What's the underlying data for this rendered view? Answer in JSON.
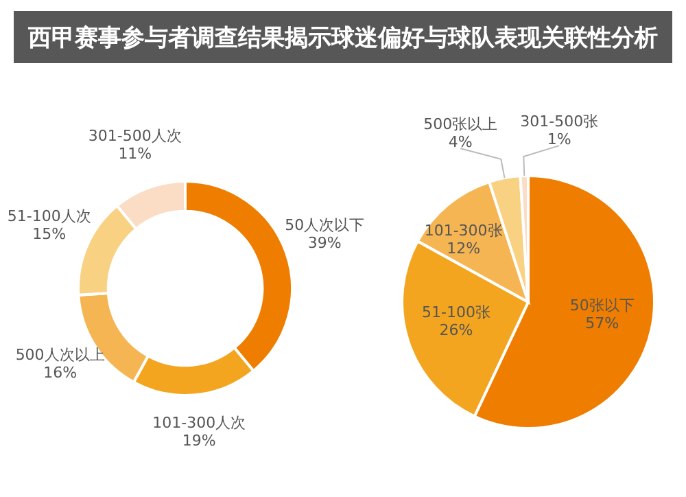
{
  "chart_data": [
    {
      "type": "donut",
      "title": "西甲赛事参与者调查结果揭示球迷偏好与球队表现关联性分析",
      "categories": [
        "50人次以下",
        "101-300人次",
        "500人次以上",
        "51-100人次",
        "301-500人次"
      ],
      "values": [
        39,
        19,
        16,
        15,
        11
      ],
      "value_labels": [
        "39%",
        "19%",
        "16%",
        "15%",
        "11%"
      ],
      "colors": [
        "#ee7d00",
        "#f4a51f",
        "#f6b553",
        "#f8d183",
        "#fbdcc4"
      ]
    },
    {
      "type": "pie",
      "categories": [
        "50张以下",
        "51-100张",
        "101-300张",
        "500张以上",
        "301-500张"
      ],
      "values": [
        57,
        26,
        12,
        4,
        1
      ],
      "value_labels": [
        "57%",
        "26%",
        "12%",
        "4%",
        "1%"
      ],
      "colors": [
        "#ee7d00",
        "#f4a51f",
        "#f6b553",
        "#f8d183",
        "#fbdcc4"
      ]
    }
  ]
}
